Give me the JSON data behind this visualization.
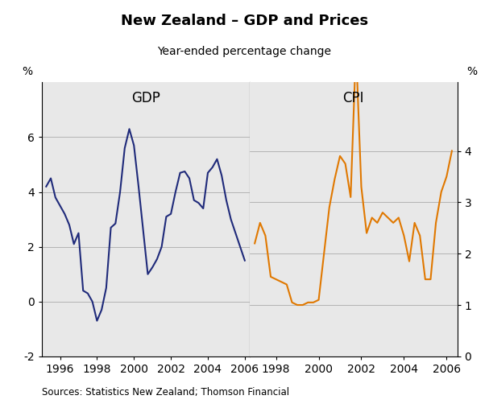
{
  "title": "New Zealand – GDP and Prices",
  "subtitle": "Year-ended percentage change",
  "source": "Sources: Statistics New Zealand; Thomson Financial",
  "left_label": "GDP",
  "right_label": "CPI",
  "ylabel_left": "%",
  "ylabel_right": "%",
  "gdp_color": "#1f2a7a",
  "cpi_color": "#e07800",
  "background_color": "#e8e8e8",
  "gdp_ylim": [
    -2,
    8
  ],
  "cpi_ylim": [
    0,
    5.333
  ],
  "gdp_yticks": [
    -2,
    0,
    2,
    4,
    6
  ],
  "cpi_yticks": [
    0,
    1,
    2,
    3,
    4
  ],
  "gdp_data": [
    [
      1995.25,
      4.2
    ],
    [
      1995.5,
      4.5
    ],
    [
      1995.75,
      3.8
    ],
    [
      1996.0,
      3.5
    ],
    [
      1996.25,
      3.2
    ],
    [
      1996.5,
      2.8
    ],
    [
      1996.75,
      2.1
    ],
    [
      1997.0,
      2.5
    ],
    [
      1997.25,
      0.4
    ],
    [
      1997.5,
      0.3
    ],
    [
      1997.75,
      0.0
    ],
    [
      1998.0,
      -0.7
    ],
    [
      1998.25,
      -0.3
    ],
    [
      1998.5,
      0.5
    ],
    [
      1998.75,
      2.7
    ],
    [
      1999.0,
      2.85
    ],
    [
      1999.25,
      4.0
    ],
    [
      1999.5,
      5.6
    ],
    [
      1999.75,
      6.3
    ],
    [
      2000.0,
      5.7
    ],
    [
      2000.25,
      4.2
    ],
    [
      2000.5,
      2.6
    ],
    [
      2000.75,
      1.0
    ],
    [
      2001.0,
      1.25
    ],
    [
      2001.25,
      1.55
    ],
    [
      2001.5,
      2.0
    ],
    [
      2001.75,
      3.1
    ],
    [
      2002.0,
      3.2
    ],
    [
      2002.25,
      4.0
    ],
    [
      2002.5,
      4.7
    ],
    [
      2002.75,
      4.75
    ],
    [
      2003.0,
      4.5
    ],
    [
      2003.25,
      3.7
    ],
    [
      2003.5,
      3.6
    ],
    [
      2003.75,
      3.4
    ],
    [
      2004.0,
      4.7
    ],
    [
      2004.25,
      4.9
    ],
    [
      2004.5,
      5.2
    ],
    [
      2004.75,
      4.6
    ],
    [
      2005.0,
      3.7
    ],
    [
      2005.25,
      3.0
    ],
    [
      2005.5,
      2.5
    ],
    [
      2005.75,
      2.0
    ],
    [
      2006.0,
      1.5
    ]
  ],
  "cpi_data": [
    [
      1997.0,
      2.2
    ],
    [
      1997.25,
      2.6
    ],
    [
      1997.5,
      2.35
    ],
    [
      1997.75,
      1.55
    ],
    [
      1998.0,
      1.5
    ],
    [
      1998.25,
      1.45
    ],
    [
      1998.5,
      1.4
    ],
    [
      1998.75,
      1.05
    ],
    [
      1999.0,
      1.0
    ],
    [
      1999.25,
      1.0
    ],
    [
      1999.5,
      1.05
    ],
    [
      1999.75,
      1.05
    ],
    [
      2000.0,
      1.1
    ],
    [
      2000.25,
      2.0
    ],
    [
      2000.5,
      2.9
    ],
    [
      2000.75,
      3.45
    ],
    [
      2001.0,
      3.9
    ],
    [
      2001.25,
      3.75
    ],
    [
      2001.5,
      3.1
    ],
    [
      2001.75,
      6.0
    ],
    [
      2002.0,
      3.3
    ],
    [
      2002.25,
      2.4
    ],
    [
      2002.5,
      2.7
    ],
    [
      2002.75,
      2.6
    ],
    [
      2003.0,
      2.8
    ],
    [
      2003.25,
      2.7
    ],
    [
      2003.5,
      2.6
    ],
    [
      2003.75,
      2.7
    ],
    [
      2004.0,
      2.35
    ],
    [
      2004.25,
      1.85
    ],
    [
      2004.5,
      2.6
    ],
    [
      2004.75,
      2.35
    ],
    [
      2005.0,
      1.5
    ],
    [
      2005.25,
      1.5
    ],
    [
      2005.5,
      2.6
    ],
    [
      2005.75,
      3.2
    ],
    [
      2006.0,
      3.5
    ],
    [
      2006.25,
      4.0
    ]
  ],
  "xticks_left": [
    1996,
    1998,
    2000,
    2002,
    2004,
    2006
  ],
  "xticks_right": [
    1998,
    2000,
    2002,
    2004,
    2006
  ]
}
